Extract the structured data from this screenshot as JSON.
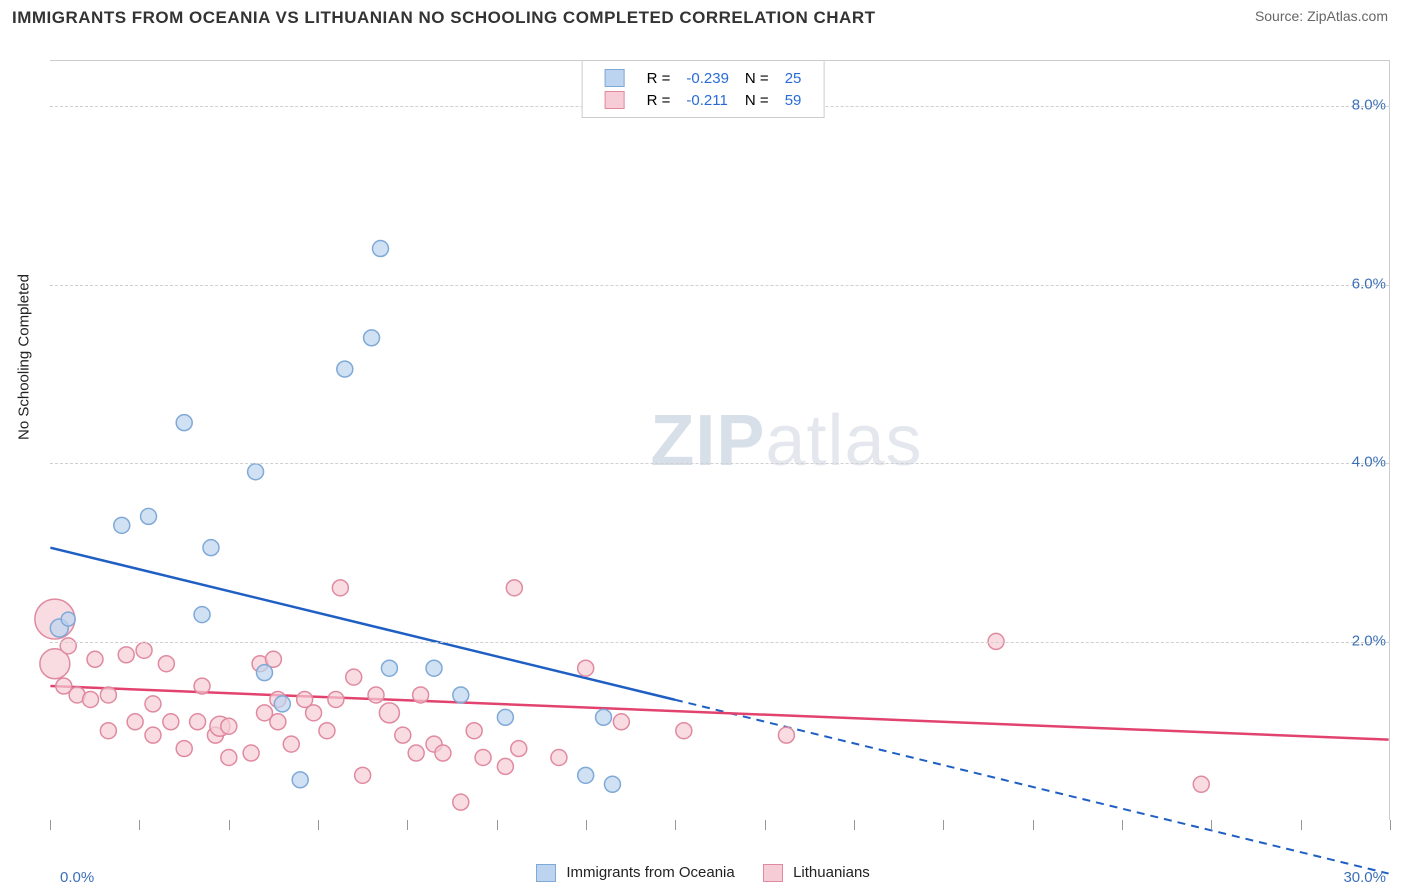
{
  "title": "IMMIGRANTS FROM OCEANIA VS LITHUANIAN NO SCHOOLING COMPLETED CORRELATION CHART",
  "source_label": "Source: ",
  "source_name": "ZipAtlas.com",
  "y_axis_label": "No Schooling Completed",
  "watermark_bold": "ZIP",
  "watermark_light": "atlas",
  "chart": {
    "type": "scatter-regression",
    "xlim": [
      0.0,
      30.0
    ],
    "ylim": [
      0.0,
      8.5
    ],
    "x_ticks_minor_step": 2.0,
    "y_gridlines": [
      2.0,
      4.0,
      6.0,
      8.0
    ],
    "y_tick_labels": [
      "2.0%",
      "4.0%",
      "6.0%",
      "8.0%"
    ],
    "x_labels": {
      "min": "0.0%",
      "max": "30.0%"
    },
    "background_color": "#ffffff",
    "grid_color": "#d0d0d0",
    "border_color": "#cccccc",
    "series": [
      {
        "key": "oceania",
        "label": "Immigrants from Oceania",
        "R": "-0.239",
        "N": "25",
        "fill": "#bcd4ef",
        "stroke": "#7fa9d6",
        "line_color": "#1f5fc4",
        "regression": {
          "x1": 0.0,
          "y1": 3.05,
          "x2": 30.0,
          "y2": -0.6,
          "solid_until_x": 14.0
        },
        "points": [
          {
            "x": 0.2,
            "y": 2.15,
            "r": 9
          },
          {
            "x": 0.4,
            "y": 2.25,
            "r": 7
          },
          {
            "x": 1.6,
            "y": 3.3,
            "r": 8
          },
          {
            "x": 2.2,
            "y": 3.4,
            "r": 8
          },
          {
            "x": 3.0,
            "y": 4.45,
            "r": 8
          },
          {
            "x": 3.4,
            "y": 2.3,
            "r": 8
          },
          {
            "x": 3.6,
            "y": 3.05,
            "r": 8
          },
          {
            "x": 4.6,
            "y": 3.9,
            "r": 8
          },
          {
            "x": 4.8,
            "y": 1.65,
            "r": 8
          },
          {
            "x": 5.2,
            "y": 1.3,
            "r": 8
          },
          {
            "x": 5.6,
            "y": 0.45,
            "r": 8
          },
          {
            "x": 6.6,
            "y": 5.05,
            "r": 8
          },
          {
            "x": 7.2,
            "y": 5.4,
            "r": 8
          },
          {
            "x": 7.4,
            "y": 6.4,
            "r": 8
          },
          {
            "x": 7.6,
            "y": 1.7,
            "r": 8
          },
          {
            "x": 8.6,
            "y": 1.7,
            "r": 8
          },
          {
            "x": 9.2,
            "y": 1.4,
            "r": 8
          },
          {
            "x": 10.2,
            "y": 1.15,
            "r": 8
          },
          {
            "x": 12.0,
            "y": 0.5,
            "r": 8
          },
          {
            "x": 12.4,
            "y": 1.15,
            "r": 8
          },
          {
            "x": 12.6,
            "y": 0.4,
            "r": 8
          }
        ]
      },
      {
        "key": "lithuanians",
        "label": "Lithuanians",
        "R": "-0.211",
        "N": "59",
        "fill": "#f6cdd6",
        "stroke": "#e08aa0",
        "line_color": "#e2436e",
        "regression": {
          "x1": 0.0,
          "y1": 1.5,
          "x2": 30.0,
          "y2": 0.9,
          "solid_until_x": 30.0
        },
        "points": [
          {
            "x": 0.1,
            "y": 2.25,
            "r": 20
          },
          {
            "x": 0.1,
            "y": 1.75,
            "r": 15
          },
          {
            "x": 0.3,
            "y": 1.5,
            "r": 8
          },
          {
            "x": 0.4,
            "y": 1.95,
            "r": 8
          },
          {
            "x": 0.6,
            "y": 1.4,
            "r": 8
          },
          {
            "x": 0.9,
            "y": 1.35,
            "r": 8
          },
          {
            "x": 1.0,
            "y": 1.8,
            "r": 8
          },
          {
            "x": 1.3,
            "y": 1.4,
            "r": 8
          },
          {
            "x": 1.3,
            "y": 1.0,
            "r": 8
          },
          {
            "x": 1.7,
            "y": 1.85,
            "r": 8
          },
          {
            "x": 1.9,
            "y": 1.1,
            "r": 8
          },
          {
            "x": 2.1,
            "y": 1.9,
            "r": 8
          },
          {
            "x": 2.3,
            "y": 1.3,
            "r": 8
          },
          {
            "x": 2.3,
            "y": 0.95,
            "r": 8
          },
          {
            "x": 2.6,
            "y": 1.75,
            "r": 8
          },
          {
            "x": 2.7,
            "y": 1.1,
            "r": 8
          },
          {
            "x": 3.0,
            "y": 0.8,
            "r": 8
          },
          {
            "x": 3.3,
            "y": 1.1,
            "r": 8
          },
          {
            "x": 3.4,
            "y": 1.5,
            "r": 8
          },
          {
            "x": 3.7,
            "y": 0.95,
            "r": 8
          },
          {
            "x": 3.8,
            "y": 1.05,
            "r": 10
          },
          {
            "x": 4.0,
            "y": 1.05,
            "r": 8
          },
          {
            "x": 4.0,
            "y": 0.7,
            "r": 8
          },
          {
            "x": 4.5,
            "y": 0.75,
            "r": 8
          },
          {
            "x": 4.7,
            "y": 1.75,
            "r": 8
          },
          {
            "x": 4.8,
            "y": 1.2,
            "r": 8
          },
          {
            "x": 5.0,
            "y": 1.8,
            "r": 8
          },
          {
            "x": 5.1,
            "y": 1.1,
            "r": 8
          },
          {
            "x": 5.1,
            "y": 1.35,
            "r": 8
          },
          {
            "x": 5.4,
            "y": 0.85,
            "r": 8
          },
          {
            "x": 5.7,
            "y": 1.35,
            "r": 8
          },
          {
            "x": 5.9,
            "y": 1.2,
            "r": 8
          },
          {
            "x": 6.2,
            "y": 1.0,
            "r": 8
          },
          {
            "x": 6.4,
            "y": 1.35,
            "r": 8
          },
          {
            "x": 6.5,
            "y": 2.6,
            "r": 8
          },
          {
            "x": 6.8,
            "y": 1.6,
            "r": 8
          },
          {
            "x": 7.0,
            "y": 0.5,
            "r": 8
          },
          {
            "x": 7.3,
            "y": 1.4,
            "r": 8
          },
          {
            "x": 7.6,
            "y": 1.2,
            "r": 10
          },
          {
            "x": 7.9,
            "y": 0.95,
            "r": 8
          },
          {
            "x": 8.2,
            "y": 0.75,
            "r": 8
          },
          {
            "x": 8.3,
            "y": 1.4,
            "r": 8
          },
          {
            "x": 8.6,
            "y": 0.85,
            "r": 8
          },
          {
            "x": 8.8,
            "y": 0.75,
            "r": 8
          },
          {
            "x": 9.2,
            "y": 0.2,
            "r": 8
          },
          {
            "x": 9.5,
            "y": 1.0,
            "r": 8
          },
          {
            "x": 9.7,
            "y": 0.7,
            "r": 8
          },
          {
            "x": 10.2,
            "y": 0.6,
            "r": 8
          },
          {
            "x": 10.4,
            "y": 2.6,
            "r": 8
          },
          {
            "x": 10.5,
            "y": 0.8,
            "r": 8
          },
          {
            "x": 11.4,
            "y": 0.7,
            "r": 8
          },
          {
            "x": 12.0,
            "y": 1.7,
            "r": 8
          },
          {
            "x": 12.8,
            "y": 1.1,
            "r": 8
          },
          {
            "x": 14.2,
            "y": 1.0,
            "r": 8
          },
          {
            "x": 16.5,
            "y": 0.95,
            "r": 8
          },
          {
            "x": 21.2,
            "y": 2.0,
            "r": 8
          },
          {
            "x": 25.8,
            "y": 0.4,
            "r": 8
          }
        ]
      }
    ]
  },
  "legend_top": {
    "r_label": "R =",
    "n_label": "N ="
  }
}
